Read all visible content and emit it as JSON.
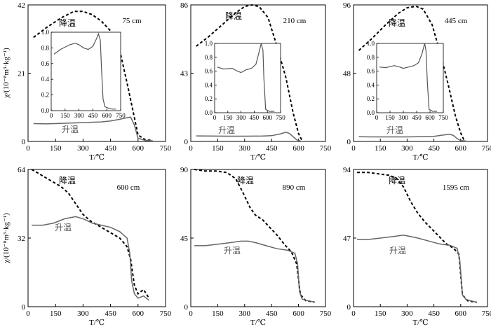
{
  "figure": {
    "ylabel": "χ/(10⁻⁸m³·kg⁻¹)",
    "xlabel": "T/℃",
    "cooling_label": "降温",
    "heating_label": "升温"
  },
  "chart_data": [
    {
      "type": "line",
      "title": "75 cm",
      "xlim": [
        0,
        750
      ],
      "ylim": [
        0,
        42
      ],
      "xticks": [
        "0",
        "150",
        "300",
        "450",
        "600",
        "750"
      ],
      "yticks": [
        "0",
        "21",
        "42"
      ],
      "series": [
        {
          "name": "降温",
          "style": "dashed",
          "x": [
            30,
            100,
            180,
            250,
            300,
            350,
            400,
            450,
            500,
            540,
            570,
            600,
            640,
            680
          ],
          "y": [
            32,
            35,
            38,
            40,
            40,
            39,
            37,
            34,
            28,
            18,
            10,
            2,
            0.5,
            0.3
          ]
        },
        {
          "name": "升温",
          "style": "solid",
          "x": [
            30,
            100,
            200,
            300,
            400,
            450,
            500,
            530,
            560,
            580,
            600,
            640,
            680
          ],
          "y": [
            5.5,
            5.4,
            5.6,
            5.8,
            6.0,
            6.3,
            6.8,
            7.2,
            7.5,
            5.0,
            1.0,
            0.3,
            0.2
          ]
        }
      ],
      "inset": {
        "xlim": [
          0,
          750
        ],
        "ylim": [
          0,
          1.0
        ],
        "xticks": [
          "0",
          "150",
          "300",
          "450",
          "600",
          "750"
        ],
        "yticks": [
          "0.0",
          "0.2",
          "0.4",
          "0.6",
          "0.8",
          "1.0"
        ],
        "x": [
          30,
          100,
          200,
          260,
          300,
          350,
          400,
          450,
          490,
          510,
          530,
          545,
          560,
          580,
          620,
          660,
          700
        ],
        "y": [
          0.72,
          0.78,
          0.84,
          0.86,
          0.84,
          0.8,
          0.78,
          0.82,
          0.92,
          0.98,
          0.9,
          0.5,
          0.15,
          0.05,
          0.03,
          0.02,
          0.02
        ]
      }
    },
    {
      "type": "line",
      "title": "210 cm",
      "xlim": [
        0,
        750
      ],
      "ylim": [
        0,
        86
      ],
      "xticks": [
        "0",
        "150",
        "300",
        "450",
        "600",
        "750"
      ],
      "yticks": [
        "0",
        "43",
        "86"
      ],
      "series": [
        {
          "name": "降温",
          "style": "dashed",
          "x": [
            30,
            100,
            180,
            250,
            300,
            340,
            380,
            430,
            480,
            530,
            570,
            600,
            620
          ],
          "y": [
            60,
            66,
            74,
            81,
            85,
            86,
            85,
            78,
            60,
            40,
            18,
            5,
            0.5
          ]
        },
        {
          "name": "升温",
          "style": "solid",
          "x": [
            30,
            100,
            200,
            300,
            400,
            450,
            500,
            530,
            550,
            570,
            590,
            610
          ],
          "y": [
            3.5,
            3.4,
            3.3,
            3.3,
            3.4,
            3.6,
            4.8,
            5.8,
            5.0,
            3.0,
            1.0,
            0.3
          ]
        }
      ],
      "inset": {
        "xlim": [
          0,
          750
        ],
        "ylim": [
          0,
          1.0
        ],
        "xticks": [
          "0",
          "150",
          "300",
          "450",
          "600",
          "750"
        ],
        "yticks": [
          "0.0",
          "0.2",
          "0.4",
          "0.6",
          "0.8",
          "1.0"
        ],
        "x": [
          30,
          100,
          200,
          260,
          300,
          360,
          420,
          470,
          500,
          530,
          550,
          560,
          580,
          620,
          680
        ],
        "y": [
          0.66,
          0.63,
          0.64,
          0.6,
          0.58,
          0.62,
          0.64,
          0.7,
          0.85,
          1.0,
          0.9,
          0.5,
          0.05,
          0.02,
          0.02
        ]
      }
    },
    {
      "type": "line",
      "title": "445 cm",
      "xlim": [
        0,
        750
      ],
      "ylim": [
        0,
        96
      ],
      "xticks": [
        "0",
        "150",
        "300",
        "450",
        "600",
        "750"
      ],
      "yticks": [
        "0",
        "48",
        "96"
      ],
      "series": [
        {
          "name": "降温",
          "style": "dashed",
          "x": [
            30,
            100,
            180,
            250,
            300,
            350,
            390,
            440,
            490,
            530,
            570,
            600,
            620
          ],
          "y": [
            64,
            72,
            82,
            90,
            94,
            95,
            93,
            82,
            60,
            40,
            18,
            6,
            0.5
          ]
        },
        {
          "name": "升温",
          "style": "solid",
          "x": [
            30,
            100,
            200,
            300,
            400,
            450,
            500,
            540,
            560,
            580,
            600,
            630
          ],
          "y": [
            3.3,
            3.2,
            3.2,
            3.2,
            3.4,
            3.6,
            4.5,
            5.0,
            4.2,
            2.0,
            0.6,
            0.3
          ]
        }
      ],
      "inset": {
        "xlim": [
          0,
          750
        ],
        "ylim": [
          0,
          1.0
        ],
        "xticks": [
          "0",
          "150",
          "300",
          "450",
          "600",
          "750"
        ],
        "yticks": [
          "0.0",
          "0.2",
          "0.4",
          "0.6",
          "0.8",
          "1.0"
        ],
        "x": [
          30,
          100,
          200,
          260,
          300,
          360,
          420,
          470,
          510,
          540,
          555,
          570,
          590,
          630,
          680
        ],
        "y": [
          0.66,
          0.65,
          0.68,
          0.66,
          0.64,
          0.66,
          0.68,
          0.72,
          0.85,
          1.0,
          0.9,
          0.45,
          0.05,
          0.02,
          0.02
        ]
      }
    },
    {
      "type": "line",
      "title": "600 cm",
      "xlim": [
        0,
        750
      ],
      "ylim": [
        0,
        64
      ],
      "xticks": [
        "0",
        "150",
        "300",
        "450",
        "600",
        "750"
      ],
      "yticks": [
        "0",
        "32",
        "64"
      ],
      "series": [
        {
          "name": "降温",
          "style": "dashed",
          "x": [
            20,
            60,
            100,
            140,
            180,
            220,
            260,
            300,
            340,
            380,
            420,
            460,
            500,
            540,
            560,
            580,
            600,
            630,
            660
          ],
          "y": [
            64,
            62,
            60,
            58,
            56,
            53,
            48,
            43,
            40,
            38,
            36,
            34,
            32,
            28,
            22,
            10,
            6,
            8,
            4
          ]
        },
        {
          "name": "升温",
          "style": "solid",
          "x": [
            20,
            80,
            140,
            200,
            260,
            300,
            350,
            400,
            450,
            500,
            540,
            555,
            565,
            580,
            600,
            630,
            660
          ],
          "y": [
            38,
            38,
            39,
            41,
            42,
            41,
            39,
            38,
            37,
            35,
            32,
            25,
            12,
            6,
            4,
            5,
            3
          ]
        }
      ]
    },
    {
      "type": "line",
      "title": "890 cm",
      "xlim": [
        0,
        750
      ],
      "ylim": [
        0,
        90
      ],
      "xticks": [
        "0",
        "150",
        "300",
        "450",
        "600",
        "750"
      ],
      "yticks": [
        "0",
        "45",
        "90"
      ],
      "series": [
        {
          "name": "降温",
          "style": "dashed",
          "x": [
            20,
            80,
            140,
            200,
            250,
            290,
            330,
            360,
            400,
            440,
            480,
            520,
            560,
            590,
            610,
            640,
            690
          ],
          "y": [
            90,
            89,
            89,
            88,
            84,
            75,
            65,
            60,
            57,
            52,
            47,
            41,
            36,
            28,
            8,
            4,
            3
          ]
        },
        {
          "name": "升温",
          "style": "solid",
          "x": [
            20,
            80,
            150,
            220,
            280,
            320,
            360,
            420,
            480,
            540,
            580,
            595,
            605,
            620,
            650,
            690
          ],
          "y": [
            40,
            40,
            41,
            42,
            43,
            43,
            42,
            40,
            38,
            37,
            35,
            28,
            10,
            5,
            4,
            3
          ]
        }
      ]
    },
    {
      "type": "line",
      "title": "1595 cm",
      "xlim": [
        0,
        750
      ],
      "ylim": [
        0,
        94
      ],
      "xticks": [
        "0",
        "150",
        "300",
        "450",
        "600",
        "750"
      ],
      "yticks": [
        "0",
        "47",
        "94"
      ],
      "series": [
        {
          "name": "降温",
          "style": "dashed",
          "x": [
            20,
            80,
            140,
            200,
            240,
            280,
            320,
            360,
            400,
            440,
            480,
            520,
            560,
            590,
            610,
            640,
            690
          ],
          "y": [
            92,
            92,
            91,
            90,
            88,
            82,
            72,
            64,
            58,
            53,
            48,
            43,
            40,
            36,
            8,
            4,
            3
          ]
        },
        {
          "name": "升温",
          "style": "solid",
          "x": [
            20,
            80,
            150,
            220,
            280,
            320,
            360,
            420,
            480,
            540,
            580,
            595,
            610,
            630,
            660,
            690
          ],
          "y": [
            46,
            46,
            47,
            48,
            49,
            48,
            47,
            45,
            43,
            42,
            40,
            32,
            8,
            5,
            4,
            3
          ]
        }
      ]
    }
  ]
}
